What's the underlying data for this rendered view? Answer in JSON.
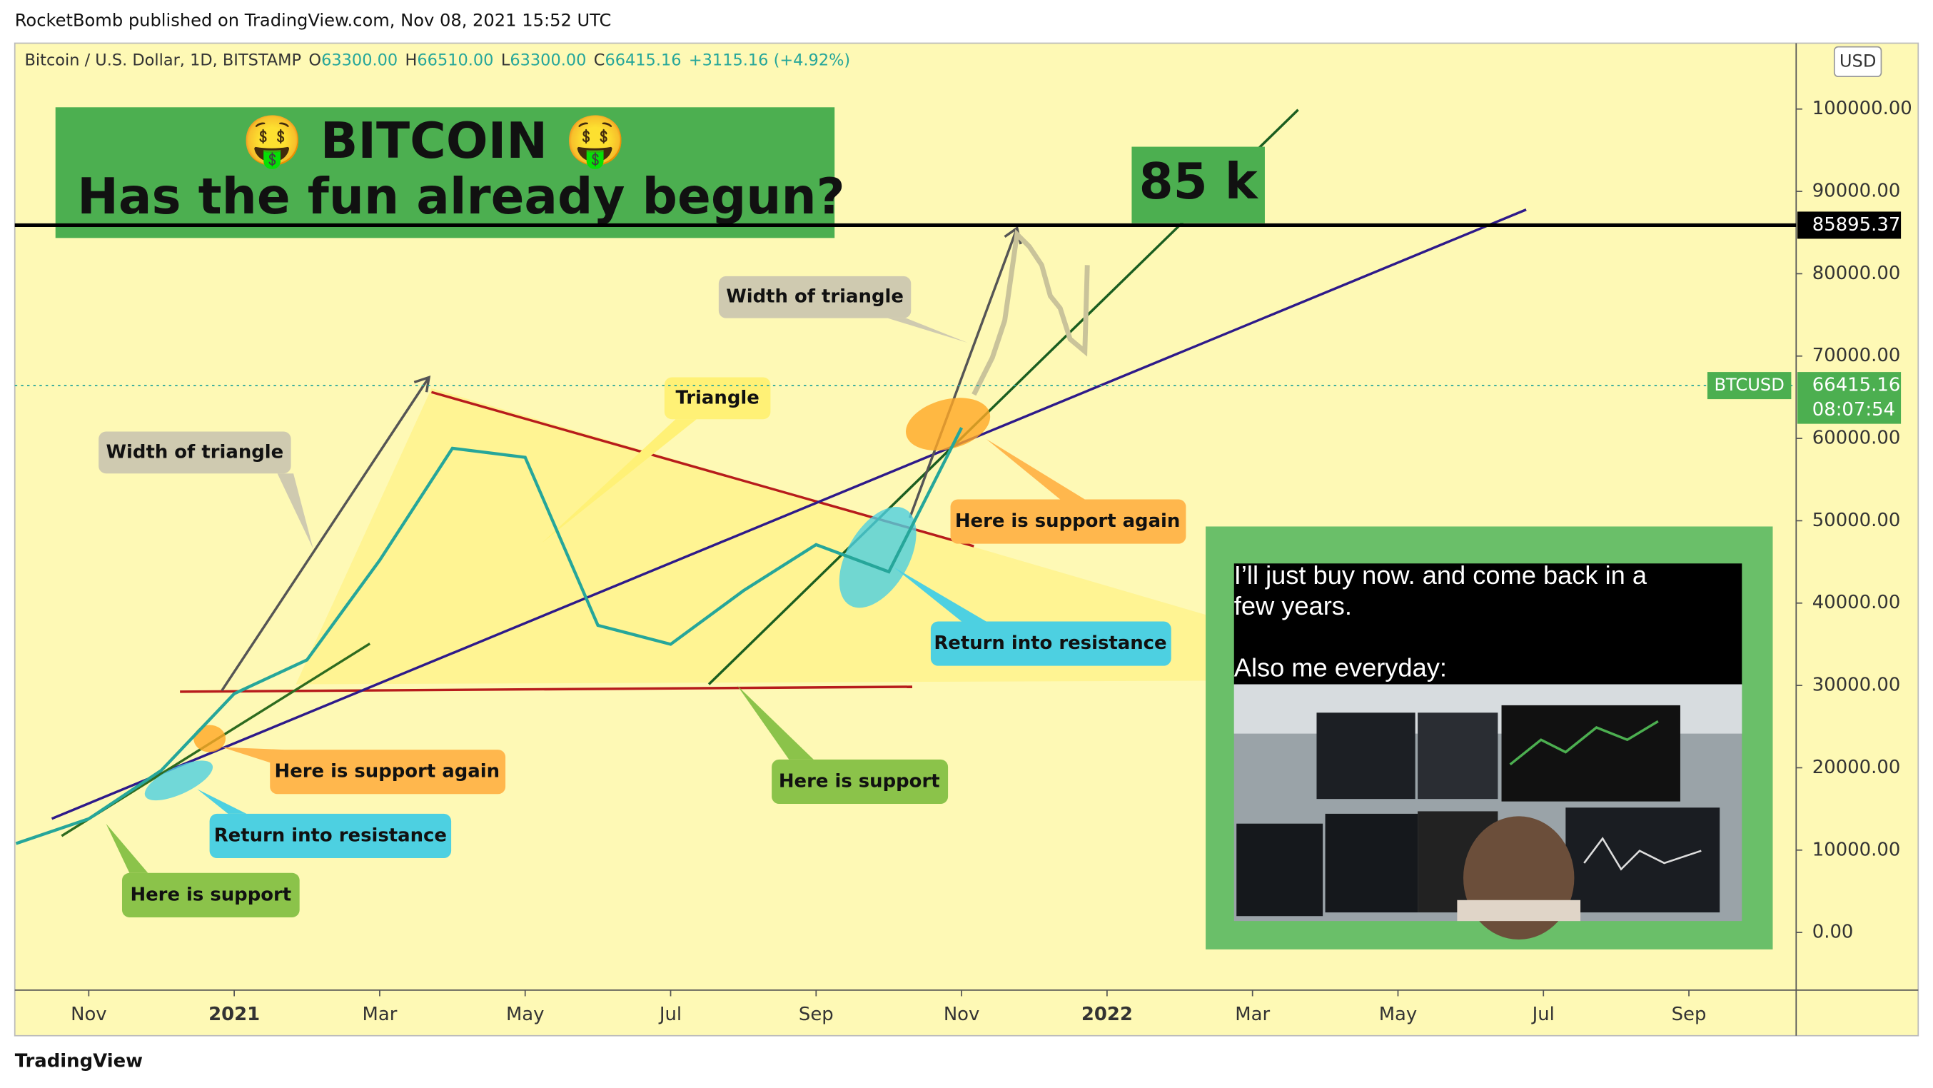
{
  "header": {
    "publisher": "RocketBomb published on TradingView.com, Nov 08, 2021 15:52 UTC",
    "symbol": "Bitcoin / U.S. Dollar, 1D, BITSTAMP",
    "ohlc": [
      {
        "key": "O",
        "text": "63300.00"
      },
      {
        "key": "H",
        "text": "66510.00"
      },
      {
        "key": "L",
        "text": "63300.00"
      },
      {
        "key": "C",
        "text": "66415.16"
      }
    ],
    "change": "+3115.16 (+4.92%)",
    "currency": "USD",
    "footer": "TradingView"
  },
  "chart_data": {
    "type": "line",
    "title": "🤑 BITCOIN 🤑",
    "subtitle": "Has the fun already begun?",
    "target": "85 k",
    "x": [
      "2020-10",
      "2020-11",
      "2020-12",
      "2021-01",
      "2021-02",
      "2021-03",
      "2021-04",
      "2021-05",
      "2021-06",
      "2021-07",
      "2021-08",
      "2021-09",
      "2021-10",
      "2021-11"
    ],
    "series": [
      {
        "name": "BTCUSD",
        "color": "#26a69a",
        "values": [
          10800,
          13800,
          19700,
          29000,
          33100,
          45200,
          58800,
          57700,
          37300,
          35000,
          41500,
          47100,
          43800,
          61300
        ]
      }
    ],
    "xlim": [
      "2020-10",
      "2022-10"
    ],
    "xticks": [
      {
        "value": "2020-11",
        "label": "Nov"
      },
      {
        "value": "2021-01",
        "label": "2021"
      },
      {
        "value": "2021-03",
        "label": "Mar"
      },
      {
        "value": "2021-05",
        "label": "May"
      },
      {
        "value": "2021-07",
        "label": "Jul"
      },
      {
        "value": "2021-09",
        "label": "Sep"
      },
      {
        "value": "2021-11",
        "label": "Nov"
      },
      {
        "value": "2022-01",
        "label": "2022"
      },
      {
        "value": "2022-03",
        "label": "Mar"
      },
      {
        "value": "2022-05",
        "label": "May"
      },
      {
        "value": "2022-07",
        "label": "Jul"
      },
      {
        "value": "2022-09",
        "label": "Sep"
      }
    ],
    "ylim": [
      -7000,
      108000
    ],
    "yticks": [
      {
        "value": 0,
        "label": "0.00"
      },
      {
        "value": 10000,
        "label": "10000.00"
      },
      {
        "value": 20000,
        "label": "20000.00"
      },
      {
        "value": 30000,
        "label": "30000.00"
      },
      {
        "value": 40000,
        "label": "40000.00"
      },
      {
        "value": 50000,
        "label": "50000.00"
      },
      {
        "value": 60000,
        "label": "60000.00"
      },
      {
        "value": 70000,
        "label": "70000.00"
      },
      {
        "value": 80000,
        "label": "80000.00"
      },
      {
        "value": 90000,
        "label": "90000.00"
      },
      {
        "value": 100000,
        "label": "100000.00"
      }
    ],
    "level": {
      "value": 85895.37,
      "label": "85895.37"
    },
    "last_price": {
      "value": 66415.16,
      "label": "66415.16",
      "countdown": "08:07:54"
    },
    "annotations": [
      "Width of triangle",
      "Width of triangle",
      "Triangle",
      "Here is support again",
      "Here is support again",
      "Return into resistance",
      "Return into resistance",
      "Here is support",
      "Here is support"
    ]
  },
  "meme": {
    "line1": "I’ll just buy now. and come back in a",
    "line2": "few years.",
    "line3": "Also me everyday:"
  }
}
